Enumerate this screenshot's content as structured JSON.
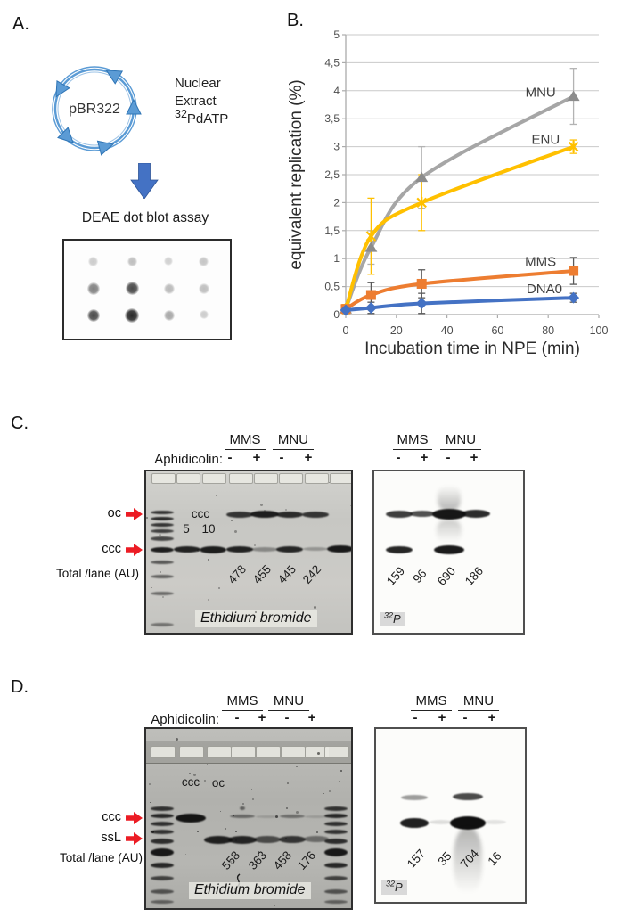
{
  "figure": {
    "panel_a": {
      "label": "A.",
      "plasmid": "pBR322",
      "reagent_line1": "Nuclear",
      "reagent_line2": "Extract",
      "isotope_sup": "32",
      "isotope_rest": "PdATP",
      "assay": "DEAE dot blot assay"
    },
    "panel_b": {
      "label": "B."
    },
    "panel_c": {
      "label": "C.",
      "groups": [
        "MMS",
        "MNU"
      ],
      "aphidicolin": "Aphidicolin:",
      "signs": [
        "-",
        "+",
        "-",
        "+"
      ],
      "marker_oc": "oc",
      "marker_ccc": "ccc",
      "total_lane": "Total /lane (AU)",
      "inner_ccc": "ccc",
      "inner_5": "5",
      "inner_10": "10",
      "eb_totals": [
        "478",
        "455",
        "445",
        "242"
      ],
      "eb_label": "Ethidium bromide",
      "p32_totals": [
        "159",
        "96",
        "690",
        "186"
      ],
      "p32_sup": "32",
      "p32_rest": "P"
    },
    "panel_d": {
      "label": "D.",
      "groups": [
        "MMS",
        "MNU"
      ],
      "aphidicolin": "Aphidicolin:",
      "signs": [
        "-",
        "+",
        "-",
        "+"
      ],
      "marker_ccc": "ccc",
      "marker_ssl": "ssL",
      "total_lane": "Total /lane (AU)",
      "inner_ccc": "ccc",
      "inner_oc": "oc",
      "eb_totals": [
        "558",
        "363",
        "458",
        "176"
      ],
      "eb_label": "Ethidium bromide",
      "p32_totals": [
        "157",
        "35",
        "704",
        "16"
      ],
      "p32_sup": "32",
      "p32_rest": "P"
    }
  },
  "chart_data": {
    "type": "line",
    "xlabel": "Incubation time in NPE (min)",
    "ylabel": "equivalent replication (%)",
    "xlim": [
      0,
      100
    ],
    "ylim": [
      0,
      5
    ],
    "xticks": [
      0,
      20,
      40,
      60,
      80,
      100
    ],
    "yticks": [
      [
        0,
        "0"
      ],
      [
        0.5,
        "0,5"
      ],
      [
        1,
        "1"
      ],
      [
        1.5,
        "1,5"
      ],
      [
        2,
        "2"
      ],
      [
        2.5,
        "2,5"
      ],
      [
        3,
        "3"
      ],
      [
        3.5,
        "3,5"
      ],
      [
        4,
        "4"
      ],
      [
        4.5,
        "4,5"
      ],
      [
        5,
        "5"
      ]
    ],
    "grid": "horizontal",
    "x": [
      0,
      10,
      30,
      90
    ],
    "series": [
      {
        "name": "MNU",
        "color": "#a6a6a6",
        "marker_color": "#8c8c8c",
        "err_color": "#b3b3b3",
        "marker": "triangle",
        "values": [
          0.1,
          1.2,
          2.45,
          3.9
        ],
        "errors": [
          0.05,
          0.3,
          0.55,
          0.5
        ],
        "label_at": [
          77,
          3.97
        ]
      },
      {
        "name": "ENU",
        "color": "#ffc000",
        "marker_color": "#ffc000",
        "err_color": "#ffc000",
        "marker": "xstar",
        "values": [
          0.1,
          1.4,
          2.0,
          3.0
        ],
        "errors": [
          0.08,
          0.68,
          0.5,
          0.12
        ],
        "label_at": [
          79,
          3.13
        ]
      },
      {
        "name": "MMS",
        "color": "#ed7d31",
        "marker_color": "#ed7d31",
        "err_color": "#595959",
        "marker": "square",
        "values": [
          0.1,
          0.35,
          0.55,
          0.78
        ],
        "errors": [
          0.05,
          0.22,
          0.25,
          0.24
        ],
        "label_at": [
          77,
          0.95
        ]
      },
      {
        "name": "DNA0",
        "color": "#4472c4",
        "marker_color": "#4472c4",
        "err_color": "#595959",
        "marker": "diamond",
        "values": [
          0.08,
          0.12,
          0.2,
          0.3
        ],
        "errors": [
          0.02,
          0.1,
          0.18,
          0.08
        ],
        "label_at": [
          78.5,
          0.46
        ]
      }
    ]
  }
}
